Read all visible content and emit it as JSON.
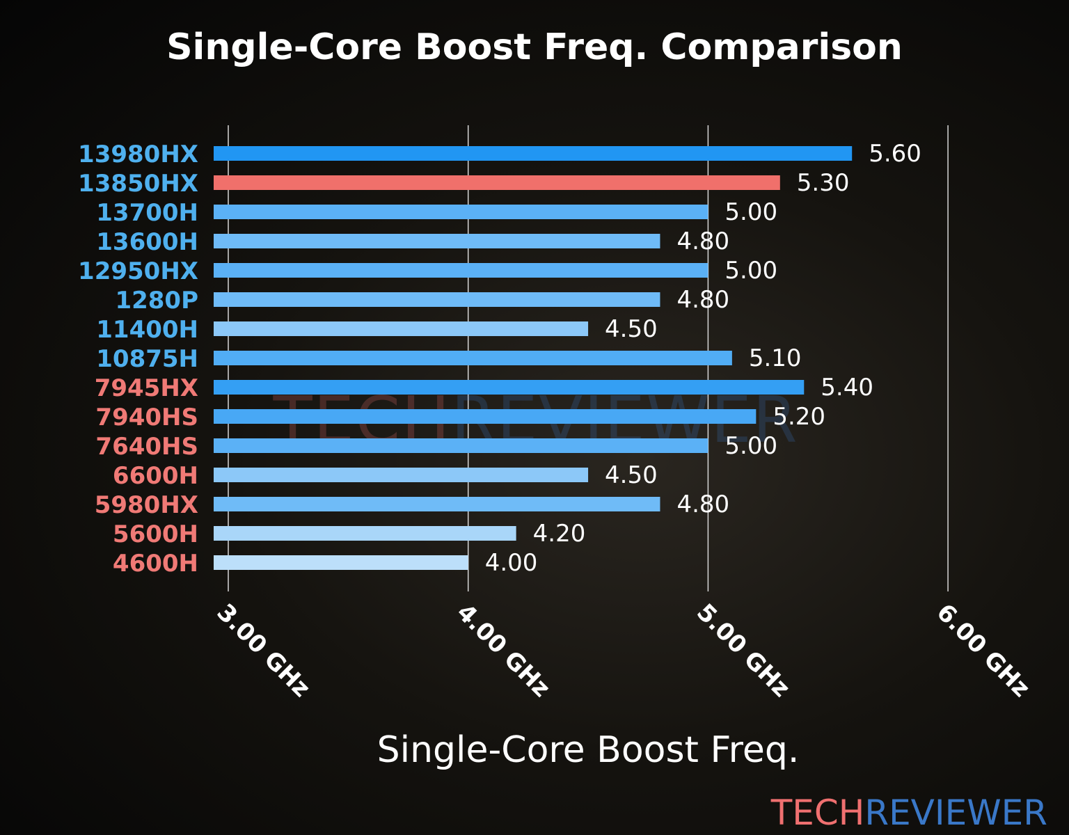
{
  "chart_data": {
    "type": "bar",
    "orientation": "horizontal",
    "title": "Single-Core Boost Freq. Comparison",
    "xlabel": "Single-Core Boost Freq.",
    "ylabel": "",
    "xlim": [
      2.94,
      6.0
    ],
    "xticks": [
      3.0,
      4.0,
      5.0,
      6.0
    ],
    "xtick_labels": [
      "3.00 GHz",
      "4.00 GHz",
      "5.00 GHz",
      "6.00 GHz"
    ],
    "grid": "vertical",
    "categories": [
      "13980HX",
      "13850HX",
      "13700H",
      "13600H",
      "12950HX",
      "1280P",
      "11400H",
      "10875H",
      "7945HX",
      "7940HS",
      "7640HS",
      "6600H",
      "5980HX",
      "5600H",
      "4600H"
    ],
    "values": [
      5.6,
      5.3,
      5.0,
      4.8,
      5.0,
      4.8,
      4.5,
      5.1,
      5.4,
      5.2,
      5.0,
      4.5,
      4.8,
      4.2,
      4.0
    ],
    "value_labels": [
      "5.60",
      "5.30",
      "5.00",
      "4.80",
      "5.00",
      "4.80",
      "4.50",
      "5.10",
      "5.40",
      "5.20",
      "5.00",
      "4.50",
      "4.80",
      "4.20",
      "4.00"
    ],
    "label_colors": [
      "#4fb0ee",
      "#4fb0ee",
      "#4fb0ee",
      "#4fb0ee",
      "#4fb0ee",
      "#4fb0ee",
      "#4fb0ee",
      "#4fb0ee",
      "#f07a76",
      "#f07a76",
      "#f07a76",
      "#f07a76",
      "#f07a76",
      "#f07a76",
      "#f07a76"
    ],
    "highlight": {
      "category": "13850HX",
      "color": "#f0706b"
    },
    "bar_color_low": "#bcdffa",
    "bar_color_high": "#2196f3"
  },
  "watermark": {
    "part1": "TECH",
    "part2": "REVIEWER",
    "color1": "#f07070",
    "color2": "#3a78c8"
  }
}
